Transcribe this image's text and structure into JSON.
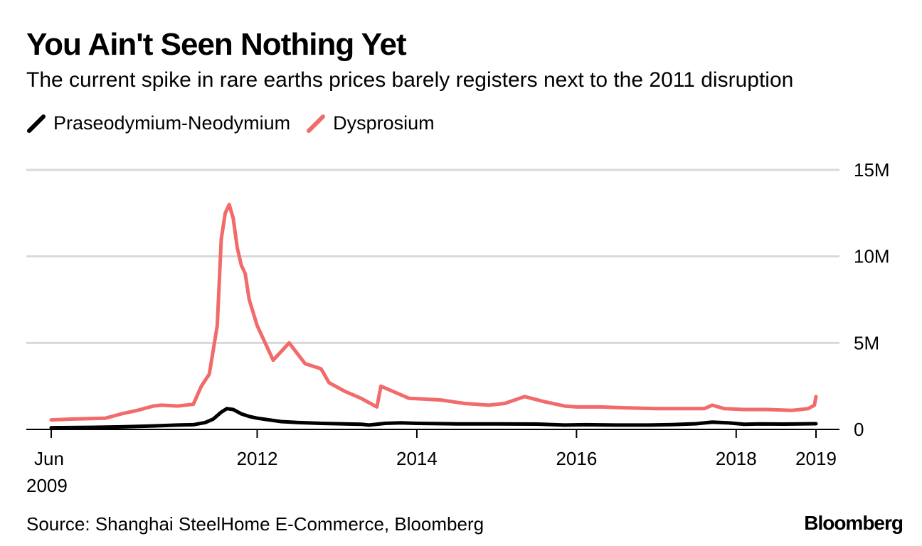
{
  "title": "You Ain't Seen Nothing Yet",
  "subtitle": "The current spike in rare earths prices barely registers next to the 2011 disruption",
  "source": "Source: Shanghai SteelHome E-Commerce, Bloomberg",
  "brand": "Bloomberg",
  "colors": {
    "prndnd": "#000000",
    "dysprosium": "#f26b6b",
    "grid": "#d9d9d9"
  },
  "chart_data": {
    "type": "line",
    "title": "You Ain't Seen Nothing Yet",
    "ylim": [
      0,
      15000000
    ],
    "xlim": [
      2009.42,
      2019.0
    ],
    "y_ticks": [
      {
        "value": 0,
        "label": "0"
      },
      {
        "value": 5000000,
        "label": "5M"
      },
      {
        "value": 10000000,
        "label": "10M"
      },
      {
        "value": 15000000,
        "label": "15M"
      }
    ],
    "x_ticks": [
      {
        "value": 2009.42,
        "label": "Jun",
        "sublabel": "2009"
      },
      {
        "value": 2012.0,
        "label": "2012"
      },
      {
        "value": 2014.0,
        "label": "2014"
      },
      {
        "value": 2016.0,
        "label": "2016"
      },
      {
        "value": 2018.0,
        "label": "2018"
      },
      {
        "value": 2019.0,
        "label": "2019"
      }
    ],
    "legend": [
      "Praseodymium-Neodymium",
      "Dysprosium"
    ],
    "series": [
      {
        "name": "Praseodymium-Neodymium",
        "color": "#000000",
        "x": [
          2009.42,
          2009.9,
          2010.3,
          2010.7,
          2011.0,
          2011.2,
          2011.35,
          2011.45,
          2011.55,
          2011.62,
          2011.7,
          2011.8,
          2011.9,
          2012.0,
          2012.15,
          2012.3,
          2012.5,
          2012.8,
          2013.0,
          2013.3,
          2013.4,
          2013.6,
          2013.8,
          2014.0,
          2014.5,
          2015.0,
          2015.5,
          2015.85,
          2016.1,
          2016.5,
          2016.9,
          2017.2,
          2017.5,
          2017.7,
          2017.9,
          2018.1,
          2018.3,
          2018.6,
          2019.0
        ],
        "y": [
          100000,
          120000,
          150000,
          200000,
          250000,
          270000,
          400000,
          600000,
          1000000,
          1200000,
          1150000,
          900000,
          750000,
          650000,
          550000,
          450000,
          400000,
          350000,
          330000,
          300000,
          250000,
          350000,
          380000,
          350000,
          320000,
          320000,
          310000,
          250000,
          270000,
          250000,
          250000,
          280000,
          330000,
          420000,
          380000,
          300000,
          320000,
          310000,
          330000
        ]
      },
      {
        "name": "Dysprosium",
        "color": "#f26b6b",
        "x": [
          2009.42,
          2009.7,
          2010.1,
          2010.3,
          2010.5,
          2010.7,
          2010.8,
          2011.0,
          2011.2,
          2011.3,
          2011.4,
          2011.5,
          2011.55,
          2011.6,
          2011.65,
          2011.7,
          2011.75,
          2011.8,
          2011.85,
          2011.9,
          2012.0,
          2012.1,
          2012.2,
          2012.3,
          2012.4,
          2012.6,
          2012.8,
          2012.9,
          2013.1,
          2013.3,
          2013.5,
          2013.55,
          2013.7,
          2013.9,
          2014.1,
          2014.3,
          2014.6,
          2014.9,
          2015.1,
          2015.35,
          2015.6,
          2015.85,
          2016.0,
          2016.3,
          2016.6,
          2017.0,
          2017.4,
          2017.6,
          2017.7,
          2017.85,
          2018.1,
          2018.4,
          2018.7,
          2018.9,
          2018.98,
          2019.0
        ],
        "y": [
          550000,
          600000,
          650000,
          900000,
          1100000,
          1350000,
          1400000,
          1350000,
          1450000,
          2500000,
          3200000,
          6000000,
          11000000,
          12500000,
          13000000,
          12200000,
          10500000,
          9500000,
          9000000,
          7500000,
          6000000,
          5000000,
          4000000,
          4500000,
          5000000,
          3800000,
          3500000,
          2700000,
          2200000,
          1800000,
          1300000,
          2500000,
          2200000,
          1800000,
          1750000,
          1700000,
          1500000,
          1400000,
          1500000,
          1900000,
          1600000,
          1350000,
          1300000,
          1300000,
          1250000,
          1200000,
          1200000,
          1200000,
          1400000,
          1200000,
          1150000,
          1150000,
          1100000,
          1200000,
          1400000,
          1900000
        ]
      }
    ]
  }
}
